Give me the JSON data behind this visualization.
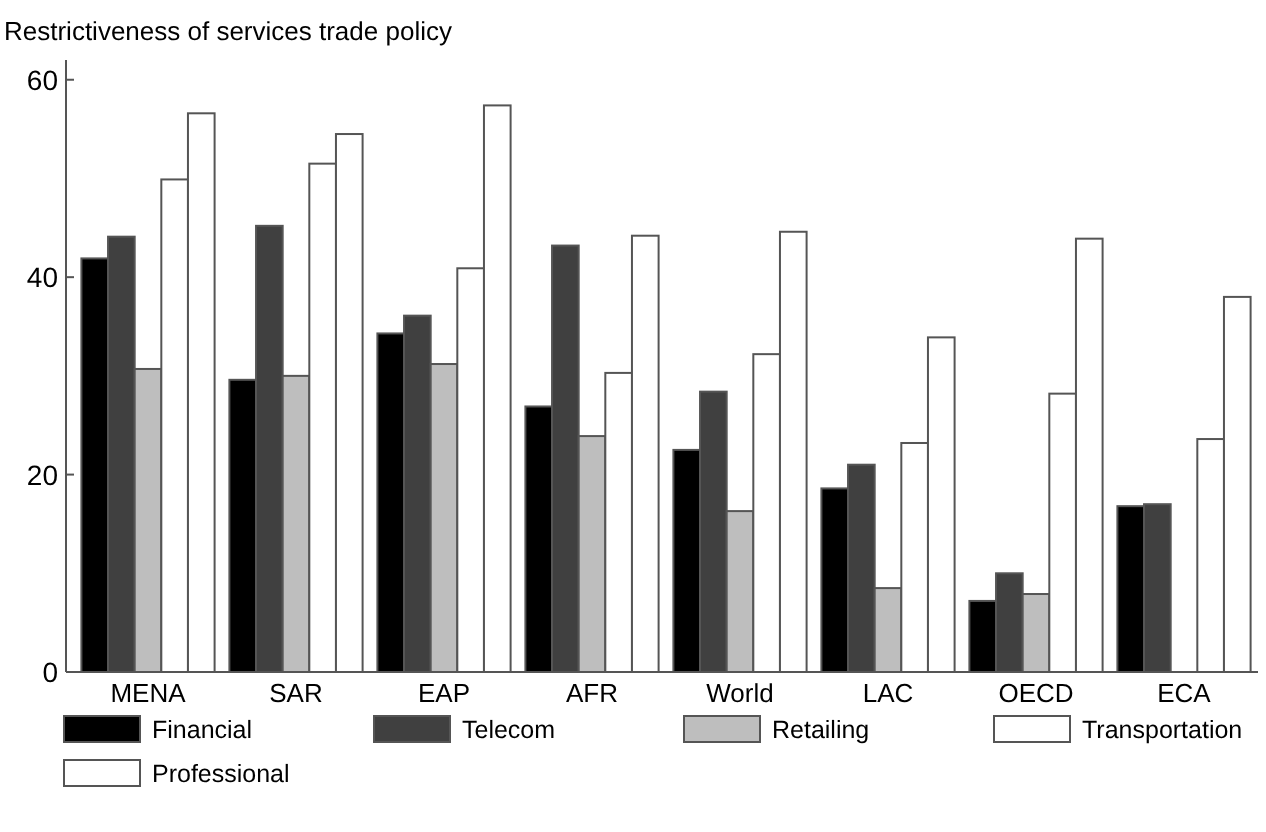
{
  "chart_data": {
    "type": "bar",
    "ylabel": "Restrictiveness of services trade policy",
    "categories": [
      "MENA",
      "SAR",
      "EAP",
      "AFR",
      "World",
      "LAC",
      "OECD",
      "ECA"
    ],
    "series": [
      {
        "name": "Financial",
        "color": "#000000",
        "values": [
          41.9,
          29.6,
          34.3,
          26.9,
          22.5,
          18.6,
          7.2,
          16.8
        ]
      },
      {
        "name": "Telecom",
        "color": "#404040",
        "values": [
          44.1,
          45.2,
          36.1,
          43.2,
          28.4,
          21,
          10,
          17
        ]
      },
      {
        "name": "Retailing",
        "color": "#bebebe",
        "values": [
          30.7,
          30,
          31.2,
          23.9,
          16.3,
          8.5,
          7.9,
          null
        ]
      },
      {
        "name": "Transportation",
        "color": "#ffffff",
        "values": [
          49.9,
          51.5,
          40.9,
          30.3,
          32.2,
          23.2,
          28.2,
          23.6
        ]
      },
      {
        "name": "Professional",
        "color": "#ffffff",
        "values": [
          56.6,
          54.5,
          57.4,
          44.2,
          44.6,
          33.9,
          43.9,
          38
        ]
      }
    ],
    "ylim": [
      0,
      62
    ],
    "yticks": [
      0,
      20,
      40,
      60
    ],
    "grid": false,
    "legend": "bottom"
  }
}
